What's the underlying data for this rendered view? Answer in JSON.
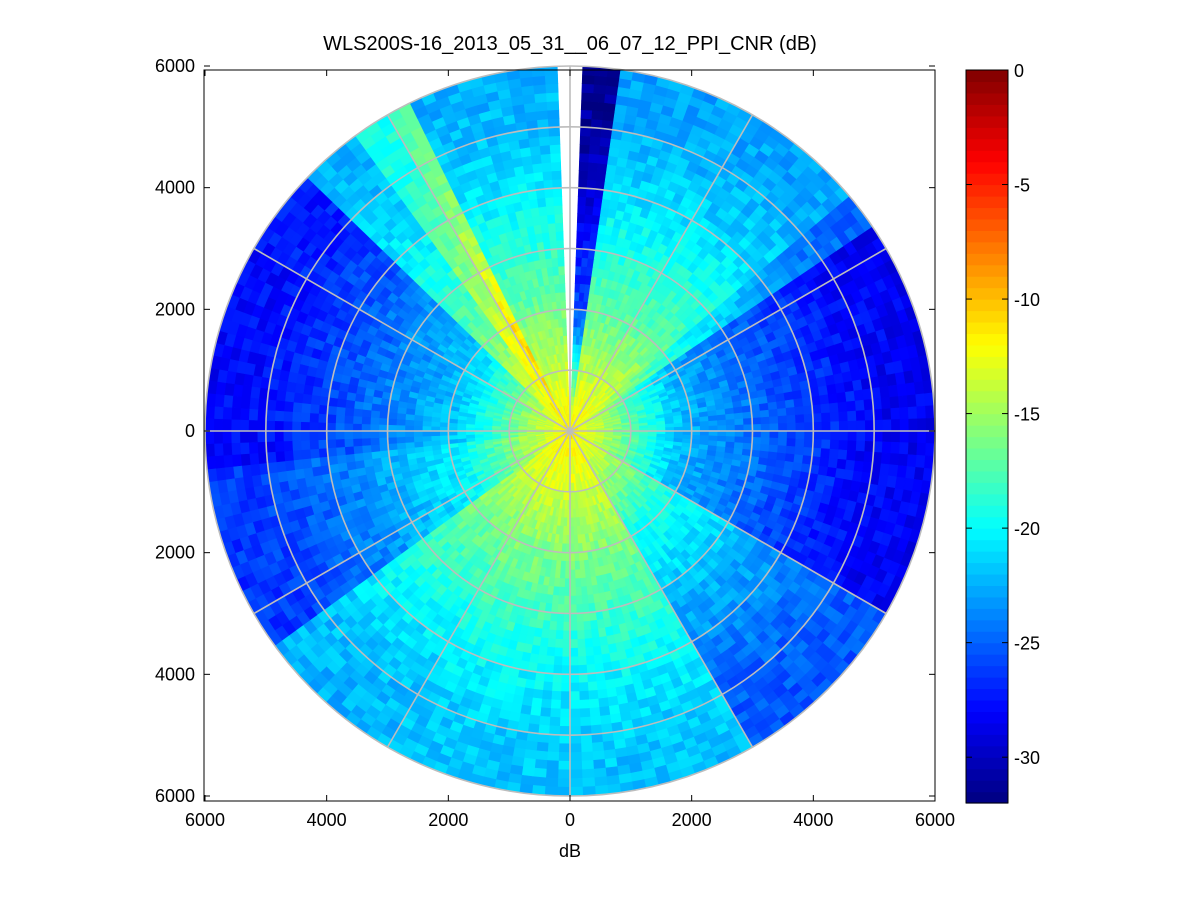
{
  "chart_data": {
    "type": "heatmap",
    "subtype": "polar-ppi",
    "title": "WLS200S-16_2013_05_31__06_07_12_PPI_CNR (dB)",
    "xlabel": "dB",
    "ylabel": "",
    "xlim": [
      -6000,
      6000
    ],
    "ylim": [
      -6000,
      6000
    ],
    "x_ticks": [
      -6000,
      -4000,
      -2000,
      0,
      2000,
      4000,
      6000
    ],
    "x_tick_labels": [
      "6000",
      "4000",
      "2000",
      "0",
      "2000",
      "4000",
      "6000"
    ],
    "y_ticks": [
      6000,
      4000,
      2000,
      0,
      -2000,
      -4000,
      -6000
    ],
    "y_tick_labels": [
      "6000",
      "4000",
      "2000",
      "0",
      "2000",
      "4000",
      "6000"
    ],
    "polar_grid": {
      "radii": [
        1000,
        2000,
        3000,
        4000,
        5000,
        6000
      ],
      "spoke_angles_deg": [
        0,
        30,
        60,
        90,
        120,
        150,
        180,
        210,
        240,
        270,
        300,
        330
      ]
    },
    "max_range": 6000,
    "gap_bearings_deg": [
      [
        -1,
        1.5
      ]
    ],
    "colorbar": {
      "min": -32,
      "max": 0,
      "ticks": [
        0,
        -5,
        -10,
        -15,
        -20,
        -25,
        -30
      ],
      "tick_labels": [
        "0",
        "-5",
        "-10",
        "-15",
        "-20",
        "-25",
        "-30"
      ],
      "colormap": "jet"
    },
    "cnr_profile": {
      "range_m": [
        0,
        150,
        600,
        1200,
        2000,
        2500,
        3000,
        4000,
        5000,
        6000
      ],
      "cnr_db": [
        -11,
        -12,
        -13,
        -15,
        -17.5,
        -18.5,
        -19.5,
        -21.5,
        -23,
        -23.5
      ]
    },
    "sector_offsets_db": [
      {
        "from_deg": 1.5,
        "to_deg": 8,
        "offset_db": -8
      },
      {
        "from_deg": 8,
        "to_deg": 50,
        "offset_db": 0.5
      },
      {
        "from_deg": 50,
        "to_deg": 57,
        "offset_db": -1.5
      },
      {
        "from_deg": 57,
        "to_deg": 120,
        "offset_db": -5
      },
      {
        "from_deg": 120,
        "to_deg": 150,
        "offset_db": -2
      },
      {
        "from_deg": 150,
        "to_deg": 210,
        "offset_db": 1.5
      },
      {
        "from_deg": 210,
        "to_deg": 235,
        "offset_db": 1
      },
      {
        "from_deg": 235,
        "to_deg": 265,
        "offset_db": -3
      },
      {
        "from_deg": 265,
        "to_deg": 300,
        "offset_db": -4.5
      },
      {
        "from_deg": 300,
        "to_deg": 315,
        "offset_db": -4
      },
      {
        "from_deg": 315,
        "to_deg": 325,
        "offset_db": 1
      },
      {
        "from_deg": 325,
        "to_deg": 330,
        "offset_db": 4
      },
      {
        "from_deg": 330,
        "to_deg": 335,
        "offset_db": 6
      },
      {
        "from_deg": 335,
        "to_deg": 359,
        "offset_db": 1
      }
    ]
  }
}
